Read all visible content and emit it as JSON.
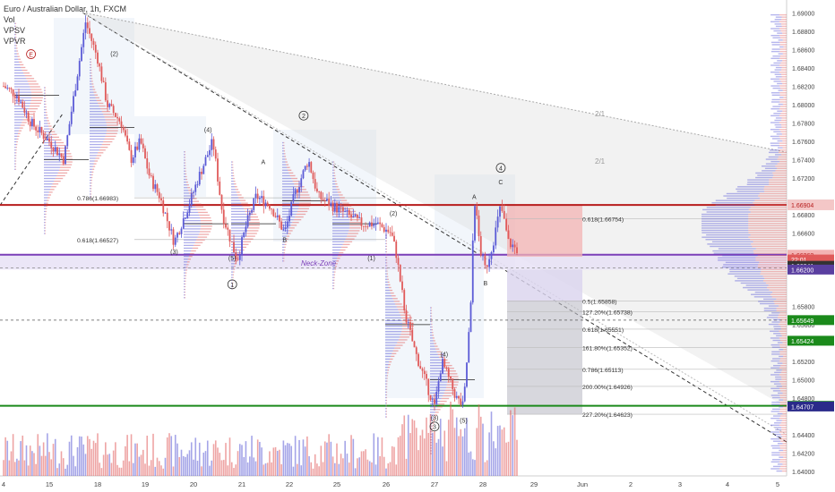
{
  "header": {
    "title": "Euro / Australian Dollar, 1h, FXCM",
    "indicators": [
      "Vol",
      "VPSV",
      "VPVR"
    ]
  },
  "colors": {
    "bull": "#5b5bd6",
    "bear": "#e05a5a",
    "resistance": "#b71c1c",
    "support": "#1b8a1b",
    "neck": "#7b3fb8",
    "fib_red": "#f3b3b3",
    "fib_dark": "#bdbdc7",
    "fib_light": "#d9d3ee"
  },
  "chart_data": {
    "type": "candlestick",
    "symbol": "Euro / Australian Dollar, 1h, FXCM",
    "x_ticks": [
      "4",
      "15",
      "18",
      "19",
      "20",
      "21",
      "22",
      "25",
      "26",
      "27",
      "28",
      "29",
      "Jun",
      "2",
      "3",
      "4",
      "5"
    ],
    "y_ticks": [
      "1.69000",
      "1.68800",
      "1.68600",
      "1.68400",
      "1.68200",
      "1.68000",
      "1.67800",
      "1.67600",
      "1.67400",
      "1.67200",
      "1.66800",
      "1.66600",
      "1.65800",
      "1.65600",
      "1.65200",
      "1.65000",
      "1.64800",
      "1.64400",
      "1.64200",
      "1.64000"
    ],
    "ylim": [
      1.6395,
      1.6914
    ],
    "price_badges": [
      {
        "label": "1.66905",
        "value": 1.66905,
        "color": "#b71c1c"
      },
      {
        "label": "1.66904",
        "value": 1.66904,
        "color": "#f4c7c7",
        "text_color": "#b71c1c"
      },
      {
        "label": "1.66362",
        "value": 1.66362,
        "color": "#f3b3b3",
        "text_color": "#b71c1c"
      },
      {
        "label": "22:01",
        "value": 1.6631,
        "color": "#e05a5a"
      },
      {
        "label": "1.66241",
        "value": 1.66241,
        "color": "#333333"
      },
      {
        "label": "1.66200",
        "value": 1.662,
        "color": "#5a3fa0"
      },
      {
        "label": "1.65649",
        "value": 1.65649,
        "color": "#1b8a1b"
      },
      {
        "label": "1.65424",
        "value": 1.65424,
        "color": "#1b8a1b"
      },
      {
        "label": "1.64714",
        "value": 1.64714,
        "color": "#1b8a1b"
      },
      {
        "label": "1.64707",
        "value": 1.64707,
        "color": "#2a2a8a"
      }
    ],
    "levels": {
      "resistance": 1.66905,
      "support": 1.64714,
      "neck_top": 1.66362,
      "neck_bottom": 1.662
    },
    "neck_label": "Neck-Zone",
    "fib_left": [
      {
        "label": "0.786(1.66983)",
        "value": 1.66983
      },
      {
        "label": "0.618(1.66527)",
        "value": 1.66527
      }
    ],
    "fib_right": [
      {
        "label": "0.618(1.66754)",
        "value": 1.66754
      },
      {
        "label": "0.5(1.65858)",
        "value": 1.65858
      },
      {
        "label": "127.20%(1.65738)",
        "value": 1.65738
      },
      {
        "label": "0.618(1.65551)",
        "value": 1.65551
      },
      {
        "label": "161.80%(1.65352)",
        "value": 1.65352
      },
      {
        "label": "0.786(1.65113)",
        "value": 1.65113
      },
      {
        "label": "200.00%(1.64926)",
        "value": 1.64926
      },
      {
        "label": "227.20%(1.64623)",
        "value": 1.64623
      }
    ],
    "fan_labels": [
      "2/1",
      "2/1"
    ],
    "waves": [
      {
        "label": "E",
        "circled": true,
        "x": 0.6,
        "y": 1.6852
      },
      {
        "label": "(2)",
        "circled": false,
        "x": 2.35,
        "y": 1.6853
      },
      {
        "label": "(4)",
        "circled": false,
        "x": 4.3,
        "y": 1.677
      },
      {
        "label": "(3)",
        "circled": false,
        "x": 3.6,
        "y": 1.6637
      },
      {
        "label": "(5)",
        "circled": false,
        "x": 4.8,
        "y": 1.663
      },
      {
        "label": "1",
        "circled": true,
        "x": 4.8,
        "y": 1.6601
      },
      {
        "label": "2",
        "circled": true,
        "x": 6.3,
        "y": 1.6785
      },
      {
        "label": "A",
        "circled": false,
        "x": 5.45,
        "y": 1.6735
      },
      {
        "label": "B",
        "circled": false,
        "x": 5.9,
        "y": 1.665
      },
      {
        "label": "(2)",
        "circled": false,
        "x": 8.15,
        "y": 1.6679
      },
      {
        "label": "(1)",
        "circled": false,
        "x": 7.7,
        "y": 1.663
      },
      {
        "label": "(4)",
        "circled": false,
        "x": 9.2,
        "y": 1.6525
      },
      {
        "label": "(3)",
        "circled": false,
        "x": 9.0,
        "y": 1.6456
      },
      {
        "label": "3",
        "circled": true,
        "x": 9.0,
        "y": 1.6446
      },
      {
        "label": "(5)",
        "circled": false,
        "x": 9.6,
        "y": 1.6453
      },
      {
        "label": "4",
        "circled": true,
        "x": 10.35,
        "y": 1.6728
      },
      {
        "label": "A",
        "circled": false,
        "x": 9.82,
        "y": 1.6697
      },
      {
        "label": "C",
        "circled": false,
        "x": 10.35,
        "y": 1.6713
      },
      {
        "label": "B",
        "circled": false,
        "x": 10.05,
        "y": 1.6603
      }
    ],
    "path": [
      [
        0,
        1.682
      ],
      [
        0.3,
        1.681
      ],
      [
        0.6,
        1.678
      ],
      [
        1.0,
        1.676
      ],
      [
        1.3,
        1.674
      ],
      [
        1.6,
        1.684
      ],
      [
        1.75,
        1.689
      ],
      [
        2.0,
        1.685
      ],
      [
        2.2,
        1.68
      ],
      [
        2.5,
        1.678
      ],
      [
        2.7,
        1.674
      ],
      [
        2.9,
        1.676
      ],
      [
        3.1,
        1.672
      ],
      [
        3.3,
        1.67
      ],
      [
        3.6,
        1.665
      ],
      [
        3.9,
        1.669
      ],
      [
        4.1,
        1.672
      ],
      [
        4.4,
        1.676
      ],
      [
        4.6,
        1.668
      ],
      [
        4.9,
        1.663
      ],
      [
        5.1,
        1.667
      ],
      [
        5.3,
        1.67
      ],
      [
        5.6,
        1.669
      ],
      [
        5.9,
        1.666
      ],
      [
        6.1,
        1.67
      ],
      [
        6.4,
        1.674
      ],
      [
        6.6,
        1.67
      ],
      [
        6.9,
        1.669
      ],
      [
        7.2,
        1.668
      ],
      [
        7.5,
        1.667
      ],
      [
        7.8,
        1.667
      ],
      [
        8.1,
        1.666
      ],
      [
        8.2,
        1.664
      ],
      [
        8.4,
        1.657
      ],
      [
        8.6,
        1.653
      ],
      [
        8.8,
        1.65
      ],
      [
        9.0,
        1.647
      ],
      [
        9.15,
        1.652
      ],
      [
        9.3,
        1.65
      ],
      [
        9.45,
        1.648
      ],
      [
        9.6,
        1.647
      ],
      [
        9.75,
        1.658
      ],
      [
        9.82,
        1.67
      ],
      [
        9.95,
        1.664
      ],
      [
        10.05,
        1.662
      ],
      [
        10.2,
        1.665
      ],
      [
        10.35,
        1.669
      ],
      [
        10.5,
        1.665
      ],
      [
        10.7,
        1.664
      ]
    ],
    "volume_max": 70,
    "xlabel": "",
    "ylabel": ""
  }
}
